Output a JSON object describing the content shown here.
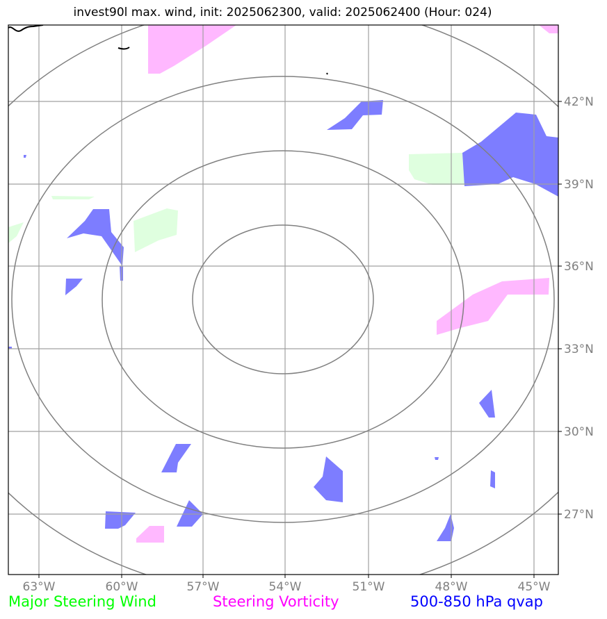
{
  "title": "invest90l max. wind, init: 2025062300, valid: 2025062400 (Hour: 024)",
  "map": {
    "lon_labels": [
      "63°W",
      "60°W",
      "57°W",
      "54°W",
      "51°W",
      "48°W",
      "45°W"
    ],
    "lat_labels": [
      "42°N",
      "39°N",
      "36°N",
      "33°N",
      "30°N",
      "27°N"
    ],
    "colors": {
      "frame": "#000000",
      "grid": "#a0a0a0",
      "range_rings": "#808080",
      "steering_wind_fill": "#dfffdf",
      "vorticity_fill": "#ffb8ff",
      "qvap_fill": "#7d7dff",
      "coastline": "#000000"
    }
  },
  "legend": {
    "items": [
      {
        "label": "Major Steering Wind",
        "color": "#00ff00"
      },
      {
        "label": "Steering Vorticity",
        "color": "#ff00ff"
      },
      {
        "label": "500-850 hPa qvap",
        "color": "#0000ff"
      }
    ]
  }
}
